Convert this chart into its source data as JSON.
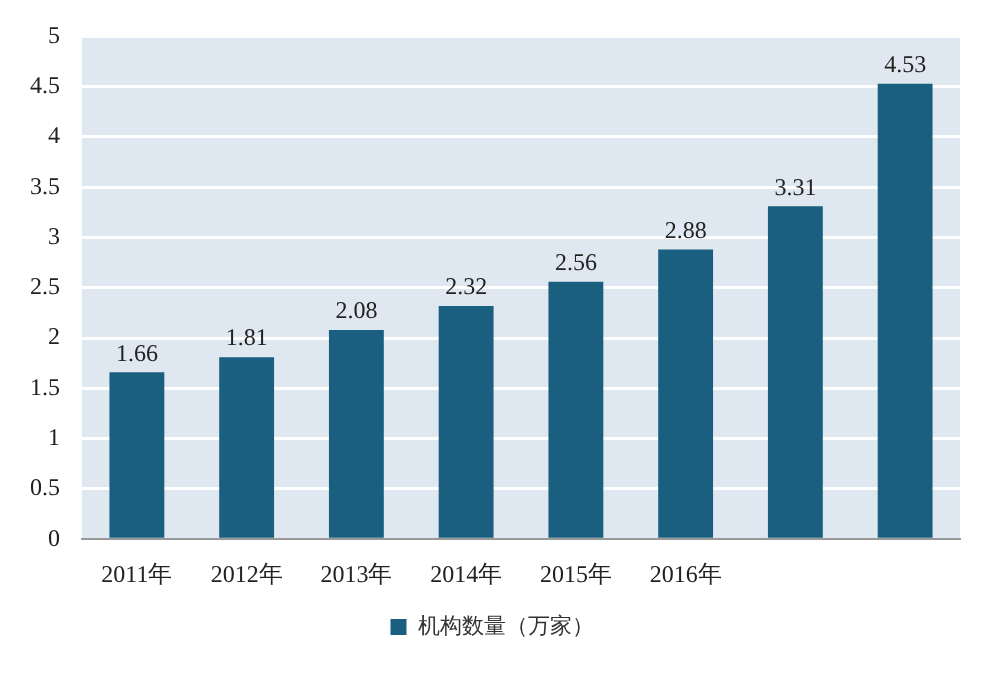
{
  "chart_data": {
    "type": "bar",
    "categories": [
      "2011年",
      "2012年",
      "2013年",
      "2014年",
      "2015年",
      "2016年",
      null,
      null
    ],
    "series": [
      {
        "name": "机构数量（万家）",
        "color": "#1b5f80",
        "values": [
          1.66,
          1.81,
          2.08,
          2.32,
          2.56,
          2.88,
          3.31,
          4.53
        ]
      }
    ],
    "ylim": [
      0,
      5
    ],
    "yticks": [
      0,
      0.5,
      1,
      1.5,
      2,
      2.5,
      3,
      3.5,
      4,
      4.5,
      5
    ],
    "grid": "y",
    "legend": "bottom",
    "data_labels": true
  }
}
